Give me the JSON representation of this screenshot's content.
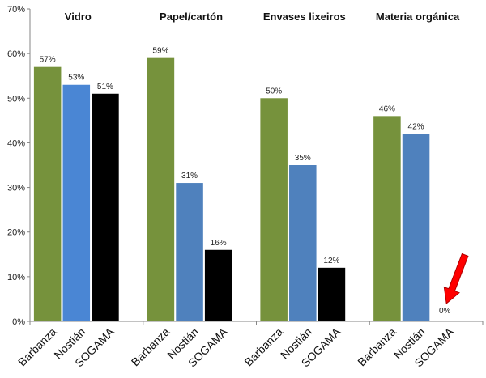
{
  "chart_data": {
    "type": "bar",
    "y_tick_labels": [
      "0%",
      "10%",
      "20%",
      "30%",
      "40%",
      "50%",
      "60%",
      "70%"
    ],
    "ylim": [
      0,
      70
    ],
    "grid": false,
    "legend": "none",
    "groups": [
      {
        "title": "Vidro",
        "bars": [
          {
            "category": "Barbanza",
            "value": 57,
            "label": "57%",
            "color": "#76923c"
          },
          {
            "category": "Nostián",
            "value": 53,
            "label": "53%",
            "color": "#4a86d4"
          },
          {
            "category": "SOGAMA",
            "value": 51,
            "label": "51%",
            "color": "#000000"
          }
        ]
      },
      {
        "title": "Papel/cartón",
        "bars": [
          {
            "category": "Barbanza",
            "value": 59,
            "label": "59%",
            "color": "#76923c"
          },
          {
            "category": "Nostián",
            "value": 31,
            "label": "31%",
            "color": "#4f81bd"
          },
          {
            "category": "SOGAMA",
            "value": 16,
            "label": "16%",
            "color": "#000000"
          }
        ]
      },
      {
        "title": "Envases lixeiros",
        "bars": [
          {
            "category": "Barbanza",
            "value": 50,
            "label": "50%",
            "color": "#76923c"
          },
          {
            "category": "Nostián",
            "value": 35,
            "label": "35%",
            "color": "#4f81bd"
          },
          {
            "category": "SOGAMA",
            "value": 12,
            "label": "12%",
            "color": "#000000"
          }
        ]
      },
      {
        "title": "Materia orgánica",
        "bars": [
          {
            "category": "Barbanza",
            "value": 46,
            "label": "46%",
            "color": "#76923c"
          },
          {
            "category": "Nostián",
            "value": 42,
            "label": "42%",
            "color": "#4f81bd"
          },
          {
            "category": "SOGAMA",
            "value": 0,
            "label": "0%",
            "color": "#000000"
          }
        ]
      }
    ],
    "annotation": {
      "type": "arrow",
      "color": "#ff0000",
      "points_to": "Materia orgánica / SOGAMA"
    }
  }
}
